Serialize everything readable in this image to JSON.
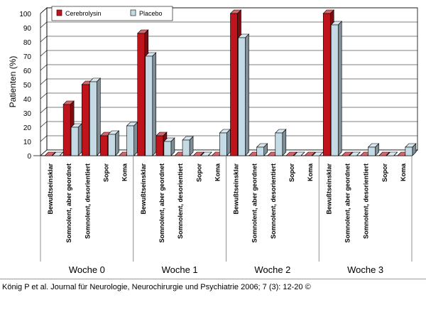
{
  "chart_data": {
    "type": "bar",
    "ylabel": "Patienten (%)",
    "ylim": [
      0,
      100
    ],
    "yticks": [
      0,
      10,
      20,
      30,
      40,
      50,
      60,
      70,
      80,
      90,
      100
    ],
    "grid": true,
    "legend_position": "top-left",
    "groups": [
      "Woche 0",
      "Woche 1",
      "Woche 2",
      "Woche 3"
    ],
    "categories": [
      "Bewußtseinsklar",
      "Somnolent, aber geordnet",
      "Somnolent, desorientiert",
      "Sopor",
      "Koma"
    ],
    "series": [
      {
        "name": "Cerebrolysin",
        "color": "#c0141c",
        "values": [
          [
            0,
            36,
            50,
            14,
            0
          ],
          [
            86,
            14,
            0,
            0,
            0
          ],
          [
            100,
            0,
            0,
            0,
            0
          ],
          [
            100,
            0,
            0,
            0,
            0
          ]
        ]
      },
      {
        "name": "Placebo",
        "color": "#c4dbe6",
        "values": [
          [
            0,
            20,
            52,
            15,
            21
          ],
          [
            70,
            10,
            11,
            0,
            16
          ],
          [
            83,
            6,
            16,
            0,
            0
          ],
          [
            92,
            0,
            6,
            0,
            6
          ]
        ]
      }
    ]
  },
  "citation": "König P et al. Journal für Neurologie, Neurochirurgie und Psychiatrie 2006; 7 (3): 12-20 ©"
}
